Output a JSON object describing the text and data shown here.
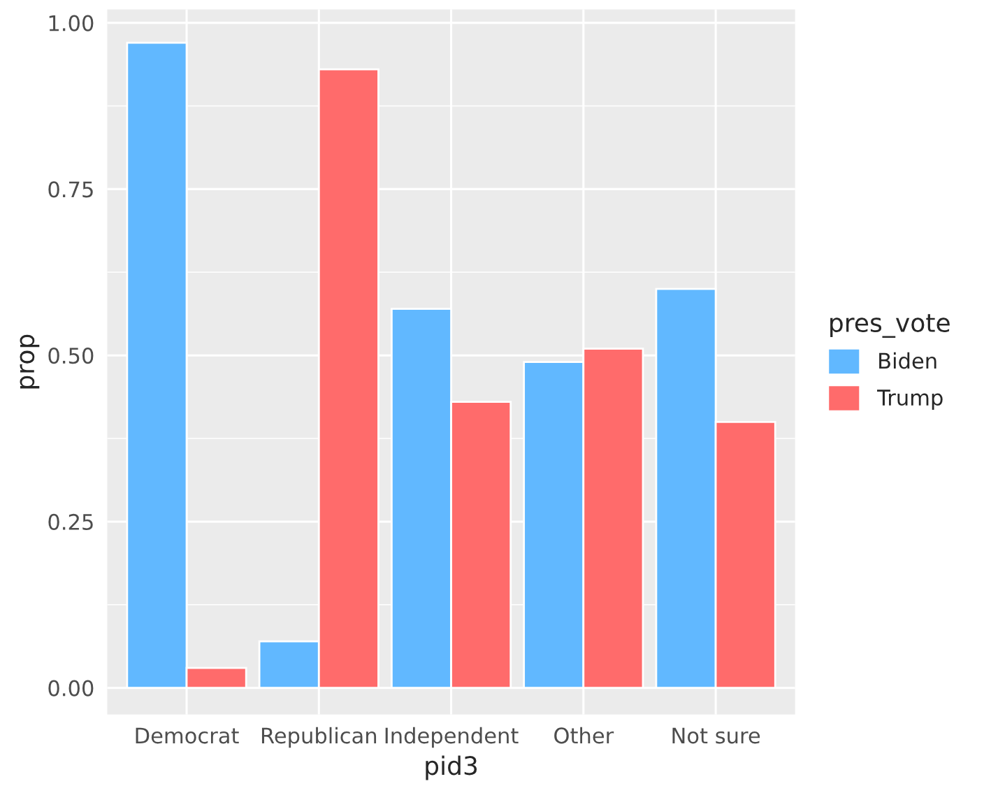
{
  "chart_data": {
    "type": "bar",
    "xlabel": "pid3",
    "ylabel": "prop",
    "legend_title": "pres_vote",
    "categories": [
      "Democrat",
      "Republican",
      "Independent",
      "Other",
      "Not sure"
    ],
    "series": [
      {
        "name": "Biden",
        "color": "#61b8ff",
        "values": [
          0.97,
          0.07,
          0.57,
          0.49,
          0.6
        ]
      },
      {
        "name": "Trump",
        "color": "#ff6b6b",
        "values": [
          0.03,
          0.93,
          0.43,
          0.51,
          0.4
        ]
      }
    ],
    "ylim": [
      -0.04,
      1.02
    ],
    "yticks": [
      {
        "value": 0,
        "label": "0.00"
      },
      {
        "value": 0.25,
        "label": "0.25"
      },
      {
        "value": 0.5,
        "label": "0.50"
      },
      {
        "value": 0.75,
        "label": "0.75"
      },
      {
        "value": 1,
        "label": "1.00"
      }
    ],
    "grid": true,
    "legend": "right"
  }
}
